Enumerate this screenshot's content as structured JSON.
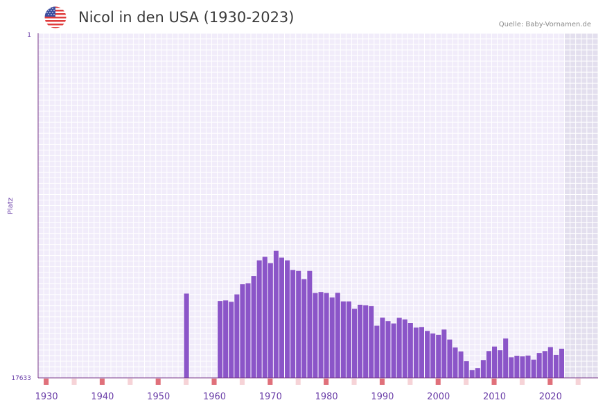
{
  "header": {
    "title": "Nicol in den USA (1930-2023)",
    "source": "Quelle: Baby-Vornamen.de",
    "flag_icon": "usa-flag-icon"
  },
  "colors": {
    "bar": "#8b55c8",
    "plot_bg": "#f1ecfa",
    "grid": "#ffffff",
    "future_bg": "#e3dfee",
    "axis": "#7a3a8a",
    "tick_text": "#6a3ea8",
    "marker_strong": "#e0707a",
    "marker_light": "#f6d3d7"
  },
  "chart_data": {
    "type": "bar",
    "title": "Nicol in den USA (1930-2023)",
    "xlabel": "",
    "ylabel": "Platz",
    "y_axis": {
      "top_label": "1",
      "bottom_label": "17633",
      "min_rank": 1,
      "max_rank": 17633
    },
    "x_ticks": [
      "1930",
      "1940",
      "1950",
      "1960",
      "1970",
      "1980",
      "1990",
      "2000",
      "2010",
      "2020"
    ],
    "x_range": [
      1929,
      2029
    ],
    "data_end_year": 2022,
    "series": [
      {
        "name": "Nicol",
        "years": [
          1955,
          1961,
          1962,
          1963,
          1964,
          1965,
          1966,
          1967,
          1968,
          1969,
          1970,
          1971,
          1972,
          1973,
          1974,
          1975,
          1976,
          1977,
          1978,
          1979,
          1980,
          1981,
          1982,
          1983,
          1984,
          1985,
          1986,
          1987,
          1988,
          1989,
          1990,
          1991,
          1992,
          1993,
          1994,
          1995,
          1996,
          1997,
          1998,
          1999,
          2000,
          2001,
          2002,
          2003,
          2004,
          2005,
          2006,
          2007,
          2008,
          2009,
          2010,
          2011,
          2012,
          2013,
          2014,
          2015,
          2016,
          2017,
          2018,
          2019,
          2020,
          2021,
          2022
        ],
        "values": [
          13320,
          13700,
          13670,
          13740,
          13360,
          12840,
          12790,
          12420,
          11620,
          11440,
          11760,
          11130,
          11480,
          11620,
          12110,
          12160,
          12580,
          12160,
          13290,
          13240,
          13290,
          13520,
          13280,
          13720,
          13720,
          14100,
          13900,
          13920,
          13950,
          14960,
          14550,
          14730,
          14850,
          14560,
          14640,
          14830,
          15060,
          15040,
          15230,
          15360,
          15430,
          15160,
          15670,
          16080,
          16280,
          16780,
          17240,
          17140,
          16720,
          16260,
          16030,
          16220,
          15620,
          16580,
          16500,
          16530,
          16490,
          16700,
          16360,
          16260,
          16060,
          16460,
          16140
        ]
      }
    ]
  }
}
